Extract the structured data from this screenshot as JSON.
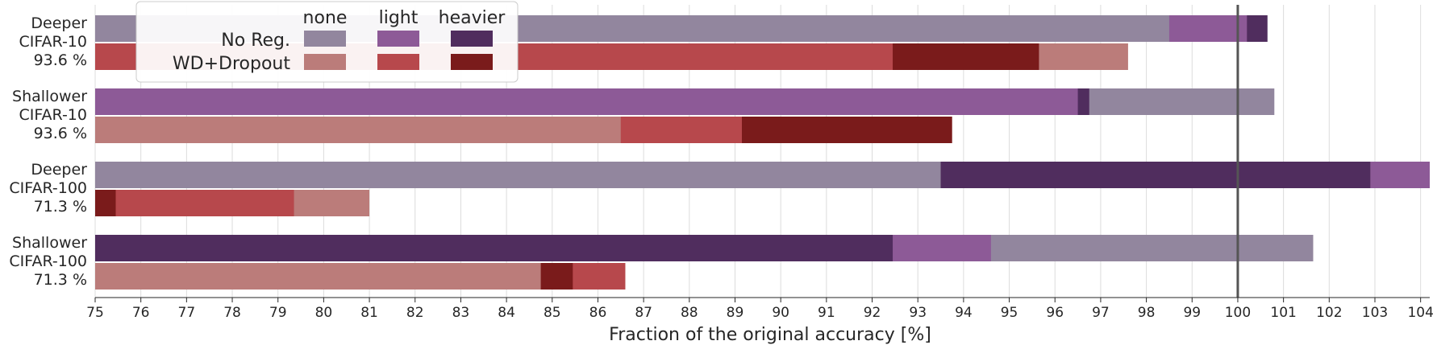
{
  "chart_data": {
    "type": "bar",
    "orientation": "horizontal",
    "stacking": "overlapping-from-axis",
    "xlabel": "Fraction of the original accuracy [%]",
    "ylabel": "",
    "xlim": [
      75,
      104.2
    ],
    "xticks": [
      75,
      76,
      77,
      78,
      79,
      80,
      81,
      82,
      83,
      84,
      85,
      86,
      87,
      88,
      89,
      90,
      91,
      92,
      93,
      94,
      95,
      96,
      97,
      98,
      99,
      100,
      101,
      102,
      103,
      104
    ],
    "grid": "vertical",
    "reference_line": 100,
    "legend": {
      "placement": "top-left",
      "column_headers": [
        "none",
        "light",
        "heavier"
      ],
      "row_labels": [
        "No Reg.",
        "WD+Dropout"
      ],
      "colors": {
        "No Reg.": {
          "none": "#92869e",
          "light": "#8d5a97",
          "heavier": "#502d5e"
        },
        "WD+Dropout": {
          "none": "#bb7c7a",
          "light": "#b7484c",
          "heavier": "#7a1b1b"
        }
      }
    },
    "groups": [
      {
        "label": [
          "Deeper",
          "CIFAR-10",
          "93.6 %"
        ],
        "bars": [
          {
            "row": "No Reg.",
            "values": {
              "none": 98.5,
              "light": 100.2,
              "heavier": 100.65
            }
          },
          {
            "row": "WD+Dropout",
            "values": {
              "none": 97.6,
              "light": 92.45,
              "heavier": 95.65
            }
          }
        ]
      },
      {
        "label": [
          "Shallower",
          "CIFAR-10",
          "93.6 %"
        ],
        "bars": [
          {
            "row": "No Reg.",
            "values": {
              "none": 100.8,
              "light": 96.5,
              "heavier": 96.75
            }
          },
          {
            "row": "WD+Dropout",
            "values": {
              "none": 86.5,
              "light": 89.15,
              "heavier": 93.75
            }
          }
        ]
      },
      {
        "label": [
          "Deeper",
          "CIFAR-100",
          "71.3 %"
        ],
        "bars": [
          {
            "row": "No Reg.",
            "values": {
              "none": 93.5,
              "light": 104.2,
              "heavier": 102.9
            }
          },
          {
            "row": "WD+Dropout",
            "values": {
              "none": 81.0,
              "light": 79.35,
              "heavier": 75.45
            }
          }
        ]
      },
      {
        "label": [
          "Shallower",
          "CIFAR-100",
          "71.3 %"
        ],
        "bars": [
          {
            "row": "No Reg.",
            "values": {
              "none": 101.65,
              "light": 94.6,
              "heavier": 92.45
            }
          },
          {
            "row": "WD+Dropout",
            "values": {
              "none": 84.75,
              "light": 86.6,
              "heavier": 85.45
            }
          }
        ]
      }
    ]
  }
}
